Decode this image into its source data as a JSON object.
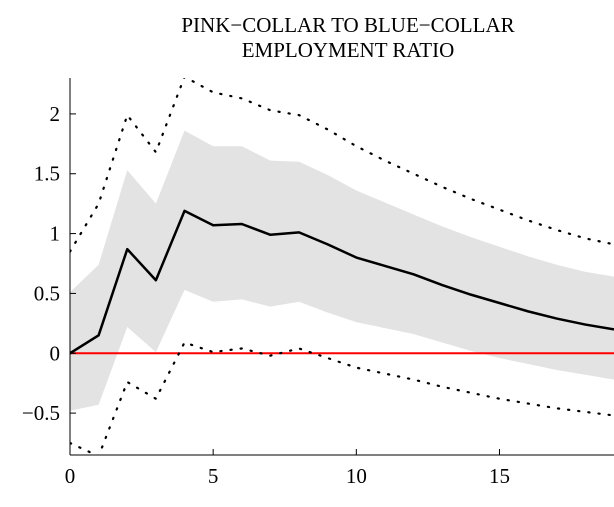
{
  "chart_data": {
    "type": "line",
    "title_lines": [
      "PINK−COLLAR TO BLUE−COLLAR",
      "EMPLOYMENT RATIO"
    ],
    "xlabel": "",
    "ylabel": "",
    "xlim": [
      0,
      19
    ],
    "ylim": [
      -0.85,
      2.3
    ],
    "x_ticks": [
      0,
      5,
      10,
      15
    ],
    "x_tick_labels": [
      "0",
      "5",
      "10",
      "15"
    ],
    "y_ticks": [
      -0.5,
      0,
      0.5,
      1,
      1.5,
      2
    ],
    "y_tick_labels": [
      "−0.5",
      "0",
      "0.5",
      "1",
      "1.5",
      "2"
    ],
    "grid": false,
    "zero_line": {
      "y": 0,
      "color": "#ff0000"
    },
    "colors": {
      "band": "#e3e3e3",
      "line": "#000000",
      "bounds": "#000000"
    },
    "x": [
      0,
      1,
      2,
      3,
      4,
      5,
      6,
      7,
      8,
      9,
      10,
      11,
      12,
      13,
      14,
      15,
      16,
      17,
      18,
      19
    ],
    "series": [
      {
        "role": "point_estimate",
        "style": "solid",
        "values": [
          0.0,
          0.15,
          0.87,
          0.61,
          1.19,
          1.07,
          1.08,
          0.99,
          1.01,
          0.91,
          0.8,
          0.73,
          0.66,
          0.57,
          0.49,
          0.42,
          0.35,
          0.29,
          0.24,
          0.2
        ]
      },
      {
        "role": "band_upper",
        "style": "fill",
        "values": [
          0.51,
          0.74,
          1.53,
          1.25,
          1.86,
          1.73,
          1.73,
          1.61,
          1.6,
          1.49,
          1.36,
          1.26,
          1.16,
          1.06,
          0.97,
          0.89,
          0.81,
          0.74,
          0.68,
          0.64
        ]
      },
      {
        "role": "band_lower",
        "style": "fill",
        "values": [
          -0.48,
          -0.43,
          0.22,
          0.01,
          0.53,
          0.43,
          0.45,
          0.39,
          0.43,
          0.34,
          0.26,
          0.21,
          0.16,
          0.09,
          0.02,
          -0.04,
          -0.09,
          -0.14,
          -0.18,
          -0.22
        ]
      },
      {
        "role": "upper_bound",
        "style": "dotted",
        "values": [
          0.85,
          1.25,
          1.99,
          1.68,
          2.31,
          2.18,
          2.13,
          2.03,
          1.99,
          1.87,
          1.73,
          1.61,
          1.5,
          1.39,
          1.29,
          1.2,
          1.11,
          1.03,
          0.96,
          0.91
        ]
      },
      {
        "role": "lower_bound",
        "style": "dotted",
        "values": [
          -0.75,
          -0.86,
          -0.24,
          -0.38,
          0.09,
          0.01,
          0.04,
          -0.02,
          0.04,
          -0.04,
          -0.12,
          -0.17,
          -0.22,
          -0.28,
          -0.33,
          -0.38,
          -0.42,
          -0.46,
          -0.49,
          -0.52
        ]
      }
    ]
  }
}
